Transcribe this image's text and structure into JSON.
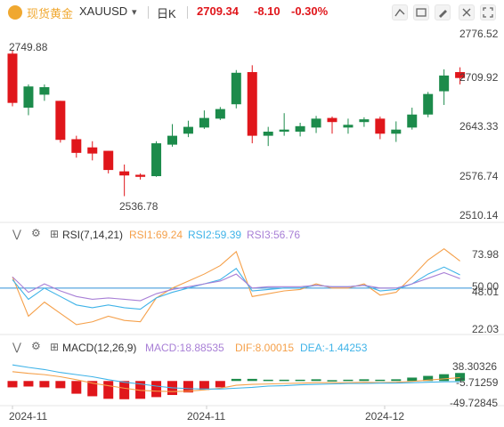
{
  "header": {
    "symbol_name": "现货黄金",
    "symbol_code": "XAUUSD",
    "interval": "日K",
    "price": "2709.34",
    "change": "-8.10",
    "change_pct": "-0.30%",
    "down_color": "#e0161b",
    "up_color": "#1c8b4b",
    "logo_color": "#f0a830"
  },
  "toolbar": [
    {
      "name": "draw-line-icon"
    },
    {
      "name": "draw-shape-icon"
    },
    {
      "name": "pen-icon"
    },
    {
      "name": "settings-icon"
    },
    {
      "name": "fullscreen-icon"
    }
  ],
  "price_axis": {
    "ticks": [
      "2776.52",
      "2709.92",
      "2643.33",
      "2576.74",
      "2510.14"
    ],
    "high_label": "2749.88",
    "low_label": "2536.78"
  },
  "rsi": {
    "title": "RSI(7,14,21)",
    "rsi1": "RSI1:69.24",
    "rsi2": "RSI2:59.39",
    "rsi3": "RSI3:56.76",
    "ticks": [
      "73.98",
      "50.00",
      "48.01",
      "22.03"
    ],
    "colors": {
      "rsi1": "#f5a04a",
      "rsi2": "#3fb3e8",
      "rsi3": "#a87fd6",
      "midline": "#2e8fd6"
    }
  },
  "macd": {
    "title": "MACD(12,26,9)",
    "macd": "MACD:18.88535",
    "dif": "DIF:8.00015",
    "dea": "DEA:-1.44253",
    "ticks": [
      "38.30326",
      "-5.71259",
      "-49.72845"
    ],
    "colors": {
      "macd": "#a87fd6",
      "dif": "#f5a04a",
      "dea": "#3fb3e8"
    }
  },
  "x_axis": {
    "labels": [
      "2024-11",
      "2024-11",
      "2024-12"
    ]
  },
  "chart_data": [
    {
      "type": "candlestick",
      "title": "XAUUSD 日K",
      "ylim": [
        2510.14,
        2776.52
      ],
      "ohlc": [
        [
          2745,
          2750,
          2668,
          2673
        ],
        [
          2666,
          2700,
          2655,
          2697
        ],
        [
          2685,
          2700,
          2676,
          2696
        ],
        [
          2676,
          2676,
          2615,
          2619
        ],
        [
          2620,
          2625,
          2593,
          2600
        ],
        [
          2608,
          2617,
          2589,
          2599
        ],
        [
          2603,
          2603,
          2570,
          2575
        ],
        [
          2573,
          2583,
          2536.78,
          2567
        ],
        [
          2568,
          2570,
          2561,
          2565
        ],
        [
          2566,
          2617,
          2565,
          2614
        ],
        [
          2612,
          2642,
          2609,
          2625
        ],
        [
          2628,
          2647,
          2623,
          2638
        ],
        [
          2637,
          2662,
          2635,
          2651
        ],
        [
          2650,
          2667,
          2648,
          2664
        ],
        [
          2671,
          2721,
          2665,
          2717
        ],
        [
          2718,
          2728,
          2614,
          2625
        ],
        [
          2625,
          2638,
          2610,
          2631
        ],
        [
          2631,
          2658,
          2625,
          2634
        ],
        [
          2631,
          2644,
          2624,
          2639
        ],
        [
          2637,
          2654,
          2629,
          2650
        ],
        [
          2651,
          2653,
          2628,
          2645
        ],
        [
          2637,
          2650,
          2628,
          2641
        ],
        [
          2645,
          2652,
          2638,
          2649
        ],
        [
          2650,
          2653,
          2620,
          2628
        ],
        [
          2628,
          2646,
          2616,
          2634
        ],
        [
          2637,
          2666,
          2634,
          2656
        ],
        [
          2656,
          2689,
          2652,
          2686
        ],
        [
          2690,
          2722,
          2670,
          2713
        ],
        [
          2718,
          2725,
          2700,
          2709.34
        ]
      ]
    },
    {
      "type": "line",
      "title": "RSI(7,14,21)",
      "ylim": [
        22.03,
        73.98
      ],
      "series": [
        {
          "name": "RSI1",
          "values": [
            58,
            30,
            40,
            32,
            24,
            26,
            30,
            27,
            26,
            43,
            50,
            55,
            60,
            66,
            76,
            44,
            46,
            48,
            49,
            53,
            50,
            50,
            53,
            45,
            47,
            58,
            70,
            78,
            69.24
          ]
        },
        {
          "name": "RSI2",
          "values": [
            56,
            42,
            50,
            44,
            38,
            36,
            38,
            36,
            35,
            43,
            47,
            50,
            53,
            56,
            64,
            48,
            49,
            50,
            50,
            52,
            51,
            51,
            52,
            48,
            49,
            53,
            60,
            65,
            59.39
          ]
        },
        {
          "name": "RSI3",
          "values": [
            58,
            47,
            53,
            48,
            44,
            42,
            43,
            42,
            41,
            46,
            49,
            51,
            53,
            55,
            60,
            50,
            51,
            51,
            51,
            52,
            51,
            51,
            52,
            50,
            50,
            53,
            57,
            61,
            56.76
          ]
        }
      ]
    },
    {
      "type": "bar",
      "title": "MACD(12,26,9)",
      "ylim": [
        -49.72845,
        38.30326
      ],
      "series": [
        {
          "name": "MACD",
          "values": [
            -15,
            -13,
            -15,
            -17,
            -30,
            -36,
            -42,
            -43,
            -42,
            -38,
            -33,
            -27,
            -21,
            -15,
            5,
            5,
            3,
            3,
            3,
            4,
            2,
            3,
            4,
            3,
            4,
            8,
            12,
            16,
            18.88535
          ]
        },
        {
          "name": "DIF",
          "values": [
            22,
            18,
            15,
            10,
            3,
            -5,
            -11,
            -17,
            -22,
            -24,
            -25,
            -24,
            -21,
            -17,
            -10,
            -8,
            -7,
            -6,
            -5,
            -4,
            -4,
            -4,
            -3,
            -4,
            -3,
            -1,
            2,
            5,
            8.00015
          ]
        },
        {
          "name": "DEA",
          "values": [
            38,
            32,
            27,
            20,
            15,
            10,
            3,
            -3,
            -7,
            -12,
            -16,
            -18,
            -19,
            -19,
            -17,
            -15,
            -12,
            -11,
            -9,
            -8,
            -7,
            -6,
            -6,
            -5,
            -5,
            -4,
            -3,
            -2,
            -1.44253
          ]
        }
      ]
    }
  ]
}
